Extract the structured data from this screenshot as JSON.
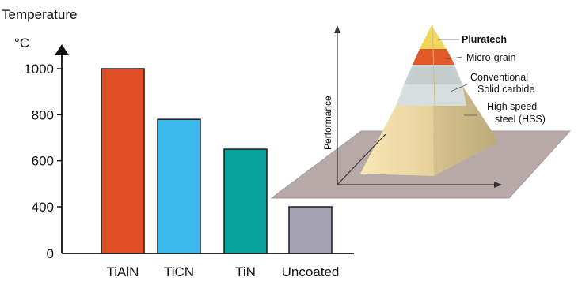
{
  "chart_data": [
    {
      "type": "bar",
      "ylabel": "Temperature",
      "yunit": "°C",
      "categories": [
        "TiAlN",
        "TiCN",
        "TiN",
        "Uncoated"
      ],
      "values": [
        1000,
        780,
        650,
        400
      ],
      "colors": [
        "#e04e26",
        "#3bb9ec",
        "#08a39b",
        "#a4a2b0"
      ],
      "yticks": [
        0,
        400,
        600,
        800,
        1000
      ],
      "ylim": [
        0,
        1100
      ],
      "scale": "broken (0 to 400 gap)",
      "grid": false
    },
    {
      "type": "pyramid",
      "ylabel": "Performance",
      "levels": [
        {
          "label": "Pluratech",
          "bold": true,
          "color": "#e05a28"
        },
        {
          "label": "Micro-grain",
          "bold": false,
          "color": "#c3ccd0"
        },
        {
          "label": "Conventional\nSolid carbide",
          "bold": false,
          "color": "#d4dcde"
        },
        {
          "label": "High speed\nsteel (HSS)",
          "bold": false,
          "color": "#ecdcaa"
        }
      ]
    }
  ]
}
